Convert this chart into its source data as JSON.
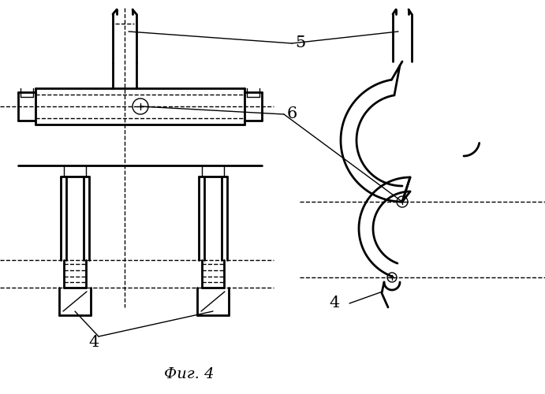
{
  "bg_color": "#ffffff",
  "line_color": "#000000",
  "fig_width": 6.91,
  "fig_height": 5.0,
  "dpi": 100,
  "title": "Фиг. 4",
  "label_5": "5",
  "label_6": "6",
  "label_4": "4"
}
